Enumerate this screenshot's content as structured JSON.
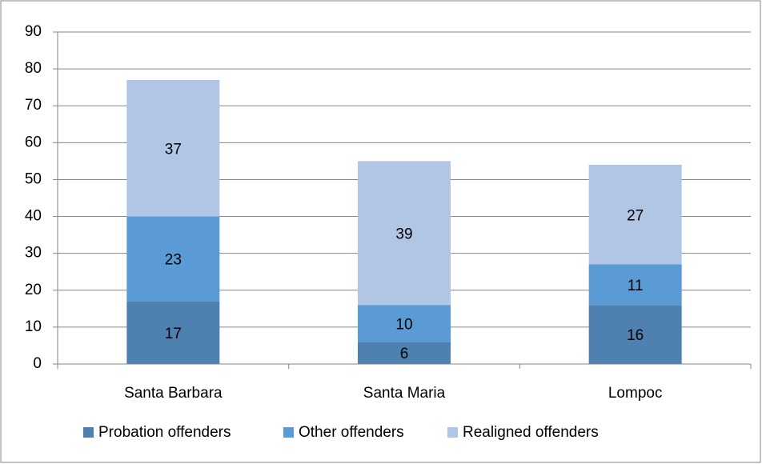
{
  "chart_data": {
    "type": "stacked_bar",
    "categories": [
      "Santa Barbara",
      "Santa Maria",
      "Lompoc"
    ],
    "series": [
      {
        "name": "Probation offenders",
        "color": "#4f81b0",
        "values": [
          17,
          6,
          16
        ]
      },
      {
        "name": "Other offenders",
        "color": "#5b9bd5",
        "values": [
          23,
          10,
          11
        ]
      },
      {
        "name": "Realigned offenders",
        "color": "#b1c6e4",
        "values": [
          37,
          39,
          27
        ]
      }
    ],
    "ylim": [
      0,
      90
    ],
    "yticks": [
      0,
      10,
      20,
      30,
      40,
      50,
      60,
      70,
      80,
      90
    ],
    "grid": true,
    "legend": "bottom"
  }
}
